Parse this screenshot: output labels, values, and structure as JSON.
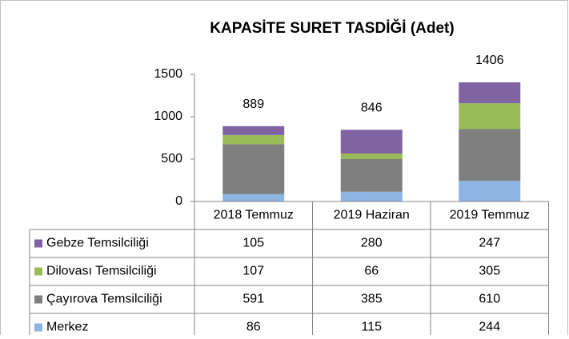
{
  "chart_data": {
    "type": "bar",
    "title": "KAPASİTE SURET TASDİĞİ (Adet)",
    "categories": [
      "2018 Temmuz",
      "2019 Haziran",
      "2019 Temmuz"
    ],
    "series": [
      {
        "name": "Gebze Temsilciliği",
        "color": "#8064a2",
        "values": [
          105,
          280,
          247
        ]
      },
      {
        "name": "Dilovası Temsilciliği",
        "color": "#9bbb59",
        "values": [
          107,
          66,
          305
        ]
      },
      {
        "name": "Çayırova Temsilciliği",
        "color": "#7f7f7f",
        "values": [
          591,
          385,
          610
        ]
      },
      {
        "name": "Merkez",
        "color": "#8db4e2",
        "values": [
          86,
          115,
          244
        ]
      }
    ],
    "totals": [
      889,
      846,
      1406
    ],
    "stacked": true,
    "ylim": [
      0,
      1500
    ],
    "yticks": [
      0,
      500,
      1000,
      1500
    ],
    "grid": false
  }
}
